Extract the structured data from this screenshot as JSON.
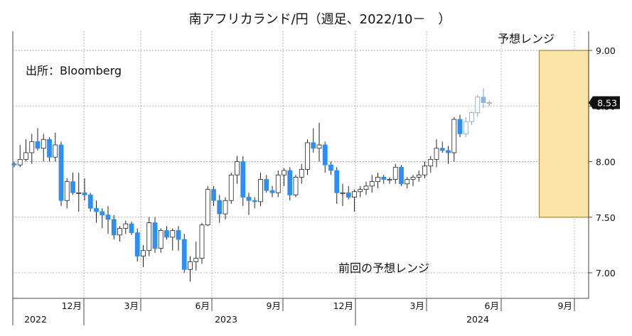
{
  "chart_data": {
    "type": "candlestick",
    "title": "南アフリカランド/円（週足、2022/10－　）",
    "source_note": "出所：Bloomberg",
    "forecast_label": "予想レンジ",
    "previous_label": "前回の予想レンジ",
    "last_value_label": "8.53",
    "ylim": [
      6.8,
      9.1
    ],
    "y_ticks": [
      "7.00",
      "7.50",
      "8.00",
      "8.50",
      "9.00"
    ],
    "y_tick_values": [
      7.0,
      7.5,
      8.0,
      8.5,
      9.0
    ],
    "x_month_ticks": [
      "12月",
      "3月",
      "6月",
      "9月",
      "12月",
      "3月",
      "6月",
      "9月"
    ],
    "x_year_labels": [
      "2022",
      "2023",
      "2024"
    ],
    "grid": true,
    "forecast_range": {
      "low": 7.5,
      "high": 9.0,
      "from_week": 90,
      "to_week": 120
    },
    "colors": {
      "up": "#ffffff",
      "down": "#2d8ff0",
      "box": "#fbe4a6",
      "box_edge": "#a08838"
    },
    "weeks_ohlc": [
      [
        7.98,
        8.0,
        7.95,
        7.97
      ],
      [
        7.97,
        8.15,
        7.95,
        8.02
      ],
      [
        8.02,
        8.2,
        8.0,
        8.08
      ],
      [
        8.08,
        8.25,
        7.98,
        8.18
      ],
      [
        8.18,
        8.3,
        8.1,
        8.12
      ],
      [
        8.12,
        8.25,
        8.0,
        8.2
      ],
      [
        8.2,
        8.22,
        8.0,
        8.04
      ],
      [
        8.04,
        8.26,
        8.0,
        8.15
      ],
      [
        8.15,
        8.18,
        7.6,
        7.65
      ],
      [
        7.65,
        7.85,
        7.58,
        7.82
      ],
      [
        7.82,
        7.9,
        7.7,
        7.72
      ],
      [
        7.72,
        7.9,
        7.55,
        7.72
      ],
      [
        7.72,
        7.85,
        7.65,
        7.7
      ],
      [
        7.7,
        7.72,
        7.55,
        7.58
      ],
      [
        7.58,
        7.65,
        7.45,
        7.55
      ],
      [
        7.55,
        7.58,
        7.4,
        7.52
      ],
      [
        7.52,
        7.6,
        7.35,
        7.48
      ],
      [
        7.48,
        7.52,
        7.3,
        7.34
      ],
      [
        7.34,
        7.42,
        7.28,
        7.4
      ],
      [
        7.4,
        7.47,
        7.35,
        7.44
      ],
      [
        7.44,
        7.46,
        7.34,
        7.36
      ],
      [
        7.36,
        7.4,
        7.1,
        7.15
      ],
      [
        7.15,
        7.25,
        7.05,
        7.2
      ],
      [
        7.2,
        7.5,
        7.15,
        7.45
      ],
      [
        7.45,
        7.5,
        7.18,
        7.22
      ],
      [
        7.22,
        7.4,
        7.18,
        7.38
      ],
      [
        7.38,
        7.42,
        7.3,
        7.32
      ],
      [
        7.32,
        7.4,
        7.2,
        7.38
      ],
      [
        7.38,
        7.42,
        7.2,
        7.3
      ],
      [
        7.3,
        7.35,
        7.0,
        7.03
      ],
      [
        7.03,
        7.15,
        6.92,
        7.1
      ],
      [
        7.1,
        7.28,
        7.02,
        7.13
      ],
      [
        7.13,
        7.45,
        7.08,
        7.43
      ],
      [
        7.43,
        7.78,
        7.42,
        7.75
      ],
      [
        7.75,
        7.78,
        7.6,
        7.65
      ],
      [
        7.65,
        7.7,
        7.45,
        7.53
      ],
      [
        7.53,
        7.68,
        7.48,
        7.65
      ],
      [
        7.65,
        7.9,
        7.62,
        7.88
      ],
      [
        7.88,
        8.05,
        7.8,
        8.0
      ],
      [
        8.0,
        8.05,
        7.6,
        7.68
      ],
      [
        7.68,
        7.72,
        7.52,
        7.65
      ],
      [
        7.65,
        7.68,
        7.58,
        7.64
      ],
      [
        7.64,
        7.9,
        7.6,
        7.84
      ],
      [
        7.84,
        7.88,
        7.72,
        7.74
      ],
      [
        7.74,
        7.78,
        7.68,
        7.72
      ],
      [
        7.72,
        7.92,
        7.68,
        7.88
      ],
      [
        7.88,
        7.94,
        7.78,
        7.92
      ],
      [
        7.92,
        7.95,
        7.65,
        7.7
      ],
      [
        7.7,
        7.88,
        7.68,
        7.86
      ],
      [
        7.86,
        7.98,
        7.8,
        7.93
      ],
      [
        7.93,
        8.2,
        7.88,
        8.17
      ],
      [
        8.17,
        8.3,
        8.08,
        8.12
      ],
      [
        8.12,
        8.35,
        8.0,
        8.15
      ],
      [
        8.15,
        8.18,
        7.9,
        7.97
      ],
      [
        7.97,
        8.0,
        7.88,
        7.92
      ],
      [
        7.92,
        7.95,
        7.62,
        7.72
      ],
      [
        7.72,
        7.8,
        7.6,
        7.72
      ],
      [
        7.72,
        7.78,
        7.66,
        7.68
      ],
      [
        7.68,
        7.75,
        7.55,
        7.73
      ],
      [
        7.73,
        7.78,
        7.68,
        7.75
      ],
      [
        7.75,
        7.82,
        7.7,
        7.78
      ],
      [
        7.78,
        7.88,
        7.72,
        7.82
      ],
      [
        7.82,
        7.9,
        7.76,
        7.86
      ],
      [
        7.86,
        7.88,
        7.8,
        7.84
      ],
      [
        7.84,
        7.86,
        7.8,
        7.84
      ],
      [
        7.84,
        7.98,
        7.8,
        7.95
      ],
      [
        7.95,
        7.97,
        7.78,
        7.8
      ],
      [
        7.8,
        7.86,
        7.76,
        7.84
      ],
      [
        7.84,
        7.88,
        7.78,
        7.86
      ],
      [
        7.86,
        7.92,
        7.82,
        7.88
      ],
      [
        7.88,
        8.0,
        7.85,
        7.96
      ],
      [
        7.96,
        8.05,
        7.9,
        8.02
      ],
      [
        8.02,
        8.2,
        7.95,
        8.12
      ],
      [
        8.12,
        8.18,
        8.08,
        8.1
      ],
      [
        8.1,
        8.14,
        7.98,
        8.08
      ],
      [
        8.08,
        8.4,
        8.0,
        8.38
      ],
      [
        8.38,
        8.42,
        8.22,
        8.25
      ],
      [
        8.25,
        8.4,
        8.22,
        8.36
      ],
      [
        8.36,
        8.45,
        8.33,
        8.44
      ],
      [
        8.44,
        8.6,
        8.4,
        8.58
      ],
      [
        8.58,
        8.66,
        8.48,
        8.53
      ],
      [
        8.53,
        8.55,
        8.5,
        8.53
      ]
    ]
  }
}
